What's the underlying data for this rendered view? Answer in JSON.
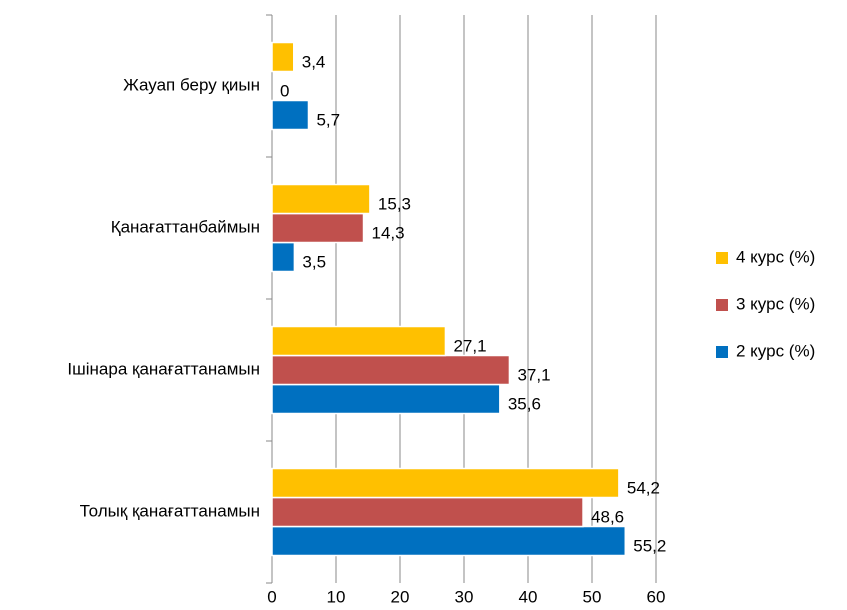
{
  "chart_data": {
    "type": "bar",
    "orientation": "horizontal",
    "categories": [
      "Жауап беру қиын",
      "Қанағаттанбаймын",
      "Ішінара қанағаттанамын",
      "Толық қанағаттанамын"
    ],
    "series": [
      {
        "name": "2 курс (%)",
        "color": "#0070c0",
        "values": [
          5.7,
          3.5,
          35.6,
          55.2
        ],
        "value_labels": [
          "5,7",
          "3,5",
          "35,6",
          "55,2"
        ]
      },
      {
        "name": "3 курс (%)",
        "color": "#c0504d",
        "values": [
          0,
          14.3,
          37.1,
          48.6
        ],
        "value_labels": [
          "0",
          "14,3",
          "37,1",
          "48,6"
        ]
      },
      {
        "name": "4 курс (%)",
        "color": "#ffc000",
        "values": [
          3.4,
          15.3,
          27.1,
          54.2
        ],
        "value_labels": [
          "3,4",
          "15,3",
          "27,1",
          "54,2"
        ]
      }
    ],
    "xlim": [
      0,
      60
    ],
    "xticks": [
      0,
      10,
      20,
      30,
      40,
      50,
      60
    ],
    "grid": true,
    "legend": "right"
  }
}
